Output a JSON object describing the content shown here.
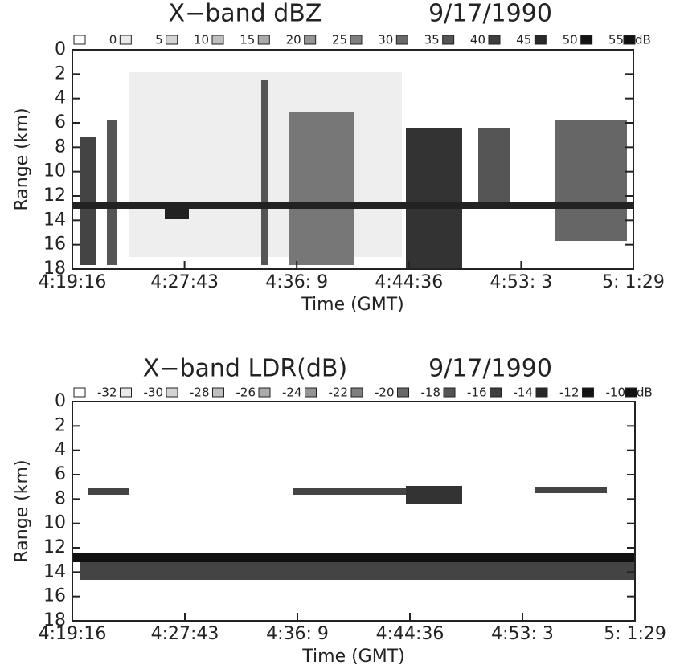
{
  "chart_data": [
    {
      "type": "heatmap",
      "title": "X−band   dBZ",
      "date": "9/17/1990",
      "legend": {
        "levels": [
          0,
          5,
          10,
          15,
          20,
          25,
          30,
          35,
          40,
          45,
          50,
          55
        ],
        "unit": "dB"
      },
      "ylabel": "Range (km)",
      "xlabel": "Time (GMT)",
      "ylim": [
        0,
        18
      ],
      "yticks": [
        0,
        2,
        4,
        6,
        8,
        10,
        12,
        14,
        16,
        18
      ],
      "y_inverted": true,
      "xtick_labels": [
        "4:19:16",
        "4:27:43",
        "4:36: 9",
        "4:44:36",
        "4:53: 3",
        "5: 1:29"
      ]
    },
    {
      "type": "heatmap",
      "title": "X−band LDR(dB)",
      "date": "9/17/1990",
      "legend": {
        "levels": [
          -32,
          -30,
          -28,
          -26,
          -24,
          -22,
          -20,
          -18,
          -16,
          -14,
          -12,
          -10
        ],
        "unit": "dB"
      },
      "ylabel": "Range (km)",
      "xlabel": "Time (GMT)",
      "ylim": [
        0,
        18
      ],
      "yticks": [
        0,
        2,
        4,
        6,
        8,
        10,
        12,
        14,
        16,
        18
      ],
      "y_inverted": true,
      "xtick_labels": [
        "4:19:16",
        "4:27:43",
        "4:36: 9",
        "4:44:36",
        "4:53: 3",
        "5: 1:29"
      ]
    }
  ]
}
